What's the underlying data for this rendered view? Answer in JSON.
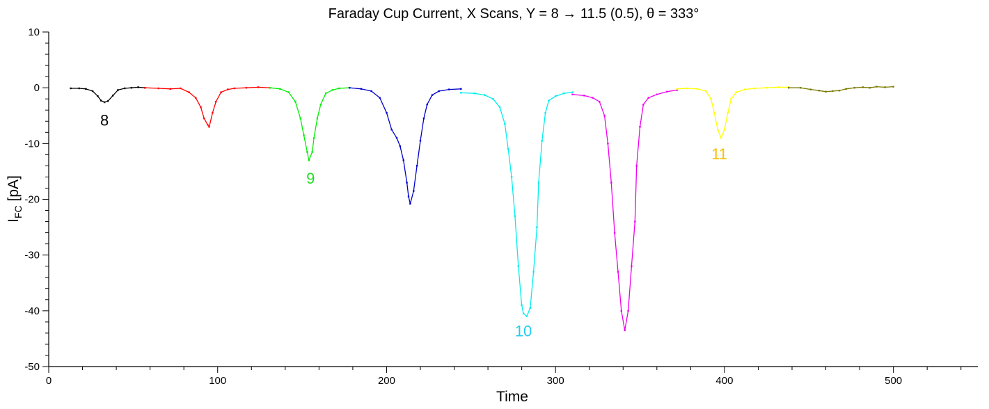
{
  "chart_data": {
    "type": "line",
    "title": "Faraday Cup Current, X Scans, Y = 8 → 11.5 (0.5), θ = 333°",
    "xlabel": "Time",
    "ylabel_main": "I",
    "ylabel_sub": "FC",
    "ylabel_unit": " [pA]",
    "xlim": [
      0,
      550
    ],
    "ylim": [
      -50,
      10
    ],
    "x_ticks": [
      0,
      100,
      200,
      300,
      400,
      500
    ],
    "x_tick_labels": [
      "0",
      "100",
      "200",
      "300",
      "400",
      "500"
    ],
    "y_ticks": [
      10,
      0,
      -10,
      -20,
      -30,
      -40,
      -50
    ],
    "y_tick_labels": [
      "10",
      "0",
      "-10",
      "-20",
      "-30",
      "-40",
      "-50"
    ],
    "grid": false,
    "series": [
      {
        "color": "#000000",
        "values": [
          [
            13,
            -0.1
          ],
          [
            18,
            -0.1
          ],
          [
            22,
            -0.2
          ],
          [
            26,
            -0.6
          ],
          [
            29,
            -1.5
          ],
          [
            31,
            -2.3
          ],
          [
            33,
            -2.6
          ],
          [
            35,
            -2.4
          ],
          [
            38,
            -1.4
          ],
          [
            41,
            -0.4
          ],
          [
            45,
            -0.1
          ],
          [
            49,
            0.0
          ],
          [
            53,
            0.1
          ],
          [
            57,
            0.0
          ]
        ]
      },
      {
        "color": "#ff0000",
        "values": [
          [
            57,
            0.0
          ],
          [
            65,
            -0.1
          ],
          [
            72,
            -0.2
          ],
          [
            78,
            -0.1
          ],
          [
            83,
            -0.8
          ],
          [
            87,
            -1.8
          ],
          [
            90,
            -3.5
          ],
          [
            92,
            -5.5
          ],
          [
            94,
            -6.6
          ],
          [
            95,
            -7.0
          ],
          [
            97,
            -4.5
          ],
          [
            99,
            -2.5
          ],
          [
            102,
            -0.8
          ],
          [
            106,
            -0.3
          ],
          [
            110,
            -0.1
          ],
          [
            117,
            0.0
          ],
          [
            124,
            0.1
          ],
          [
            131,
            0.0
          ]
        ]
      },
      {
        "color": "#00ee00",
        "values": [
          [
            131,
            0.0
          ],
          [
            137,
            -0.2
          ],
          [
            142,
            -0.8
          ],
          [
            146,
            -2.5
          ],
          [
            149,
            -5.5
          ],
          [
            151,
            -8.5
          ],
          [
            153,
            -11.5
          ],
          [
            154,
            -13.0
          ],
          [
            156,
            -11.5
          ],
          [
            157,
            -9.0
          ],
          [
            159,
            -5.5
          ],
          [
            161,
            -3.0
          ],
          [
            164,
            -1.0
          ],
          [
            168,
            -0.4
          ],
          [
            172,
            -0.1
          ],
          [
            178,
            0.0
          ]
        ]
      },
      {
        "color": "#0000cc",
        "values": [
          [
            178,
            0.0
          ],
          [
            185,
            -0.2
          ],
          [
            191,
            -0.6
          ],
          [
            196,
            -1.8
          ],
          [
            200,
            -4.5
          ],
          [
            203,
            -7.5
          ],
          [
            206,
            -9.0
          ],
          [
            208,
            -10.5
          ],
          [
            210,
            -13.0
          ],
          [
            212,
            -17.0
          ],
          [
            213,
            -19.5
          ],
          [
            214,
            -20.8
          ],
          [
            216,
            -18.5
          ],
          [
            218,
            -14.0
          ],
          [
            220,
            -9.5
          ],
          [
            222,
            -5.5
          ],
          [
            224,
            -3.0
          ],
          [
            227,
            -1.3
          ],
          [
            231,
            -0.6
          ],
          [
            237,
            -0.3
          ],
          [
            244,
            -0.2
          ]
        ]
      },
      {
        "color": "#00eeee",
        "values": [
          [
            244,
            -0.9
          ],
          [
            252,
            -1.0
          ],
          [
            258,
            -1.3
          ],
          [
            263,
            -2.0
          ],
          [
            267,
            -3.5
          ],
          [
            270,
            -6.5
          ],
          [
            272,
            -11.0
          ],
          [
            274,
            -16.0
          ],
          [
            276,
            -23.0
          ],
          [
            278,
            -32.0
          ],
          [
            280,
            -39.0
          ],
          [
            281,
            -40.5
          ],
          [
            283,
            -41.0
          ],
          [
            285,
            -39.5
          ],
          [
            287,
            -33.0
          ],
          [
            289,
            -25.0
          ],
          [
            290,
            -17.0
          ],
          [
            292,
            -9.5
          ],
          [
            294,
            -4.5
          ],
          [
            296,
            -2.3
          ],
          [
            300,
            -1.5
          ],
          [
            305,
            -1.0
          ],
          [
            310,
            -0.8
          ]
        ]
      },
      {
        "color": "#ee00ee",
        "values": [
          [
            310,
            -1.2
          ],
          [
            317,
            -1.4
          ],
          [
            322,
            -1.8
          ],
          [
            326,
            -2.5
          ],
          [
            329,
            -5.0
          ],
          [
            331,
            -10.0
          ],
          [
            333,
            -17.0
          ],
          [
            335,
            -26.0
          ],
          [
            337,
            -33.0
          ],
          [
            339,
            -40.0
          ],
          [
            341,
            -43.5
          ],
          [
            343,
            -40.0
          ],
          [
            345,
            -32.0
          ],
          [
            347,
            -24.0
          ],
          [
            348,
            -14.0
          ],
          [
            350,
            -7.0
          ],
          [
            352,
            -3.0
          ],
          [
            355,
            -1.8
          ],
          [
            360,
            -1.2
          ],
          [
            366,
            -0.7
          ],
          [
            372,
            -0.4
          ]
        ]
      },
      {
        "color": "#ffff00",
        "values": [
          [
            372,
            -0.2
          ],
          [
            378,
            -0.1
          ],
          [
            384,
            -0.2
          ],
          [
            389,
            -0.6
          ],
          [
            392,
            -2.0
          ],
          [
            394,
            -4.5
          ],
          [
            396,
            -7.5
          ],
          [
            398,
            -9.0
          ],
          [
            400,
            -7.5
          ],
          [
            402,
            -4.5
          ],
          [
            404,
            -2.0
          ],
          [
            407,
            -0.8
          ],
          [
            412,
            -0.3
          ],
          [
            418,
            -0.1
          ],
          [
            425,
            0.0
          ],
          [
            432,
            0.1
          ],
          [
            438,
            0.1
          ]
        ]
      },
      {
        "color": "#7a7a00",
        "values": [
          [
            438,
            0.0
          ],
          [
            445,
            0.0
          ],
          [
            451,
            -0.3
          ],
          [
            456,
            -0.5
          ],
          [
            460,
            -0.7
          ],
          [
            464,
            -0.6
          ],
          [
            468,
            -0.5
          ],
          [
            472,
            -0.2
          ],
          [
            477,
            0.0
          ],
          [
            482,
            0.1
          ],
          [
            486,
            0.0
          ],
          [
            490,
            0.2
          ],
          [
            495,
            0.1
          ],
          [
            500,
            0.2
          ]
        ]
      }
    ],
    "annotations": [
      {
        "text": "8",
        "x": 33,
        "y": -5.8,
        "color": "#000000"
      },
      {
        "text": "9",
        "x": 155,
        "y": -16.2,
        "color": "#22dd22"
      },
      {
        "text": "10",
        "x": 281,
        "y": -43.6,
        "color": "#22ccee"
      },
      {
        "text": "11",
        "x": 397,
        "y": -11.8,
        "color": "#f5c000"
      }
    ]
  }
}
